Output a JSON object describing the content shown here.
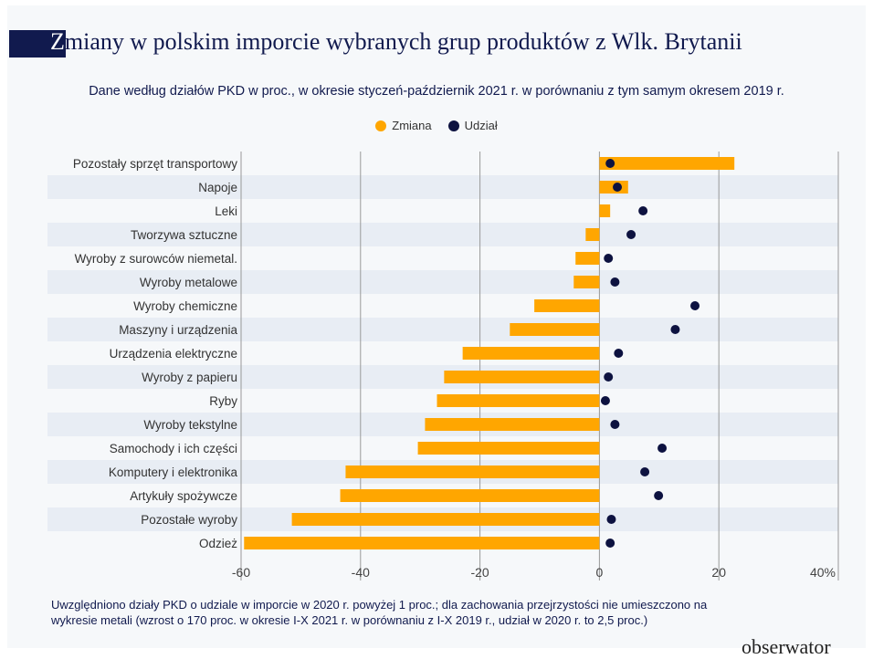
{
  "title_first": "Z",
  "title_rest": "miany w polskim imporcie wybranych grup produktów z Wlk. Brytanii",
  "subtitle": "Dane według działów PKD w proc., w okresie styczeń-październik 2021 r. w porównaniu z tym samym okresem 2019 r.",
  "note_line1": "Uwzględniono działy PKD o udziale w imporcie w 2020 r. powyżej 1 proc.; dla zachowania przejrzystości nie umieszczono na",
  "note_line2": "wykresie metali (wzrost o 170 proc. w okresie I-X 2021 r. w porównaniu z I-X 2019 r., udział w 2020 r. to 2,5 proc.)",
  "logo": "obserwator",
  "chart_data": {
    "type": "bar",
    "orientation": "horizontal",
    "legend_position": "top",
    "grid": true,
    "xlim": [
      -60,
      40
    ],
    "xticks": [
      "-60",
      "-40",
      "-20",
      "0",
      "20",
      "40%"
    ],
    "xtick_values": [
      -60,
      -40,
      -20,
      0,
      20,
      40
    ],
    "colors": {
      "Zmiana": "#ffa600",
      "Udział": "#0d1240"
    },
    "categories": [
      "Pozostały sprzęt transportowy",
      "Napoje",
      "Leki",
      "Tworzywa sztuczne",
      "Wyroby z surowców niemetal.",
      "Wyroby metalowe",
      "Wyroby chemiczne",
      "Maszyny i urządzenia",
      "Urządzenia elektryczne",
      "Wyroby z papieru",
      "Ryby",
      "Wyroby tekstylne",
      "Samochody i ich części",
      "Komputery i elektronika",
      "Artykuły spożywcze",
      "Pozostałe wyroby",
      "Odzież"
    ],
    "series": [
      {
        "name": "Zmiana",
        "mark": "bar",
        "values": [
          22.6,
          4.8,
          1.8,
          -2.3,
          -4.0,
          -4.3,
          -10.9,
          -15.0,
          -22.9,
          -26.0,
          -27.2,
          -29.2,
          -30.4,
          -42.5,
          -43.4,
          -51.5,
          -59.5
        ]
      },
      {
        "name": "Udział",
        "mark": "dot",
        "values": [
          1.8,
          3.0,
          7.3,
          5.3,
          1.5,
          2.6,
          16.0,
          12.7,
          3.2,
          1.5,
          1.0,
          2.6,
          10.5,
          7.6,
          9.9,
          2.0,
          1.8
        ]
      }
    ]
  }
}
